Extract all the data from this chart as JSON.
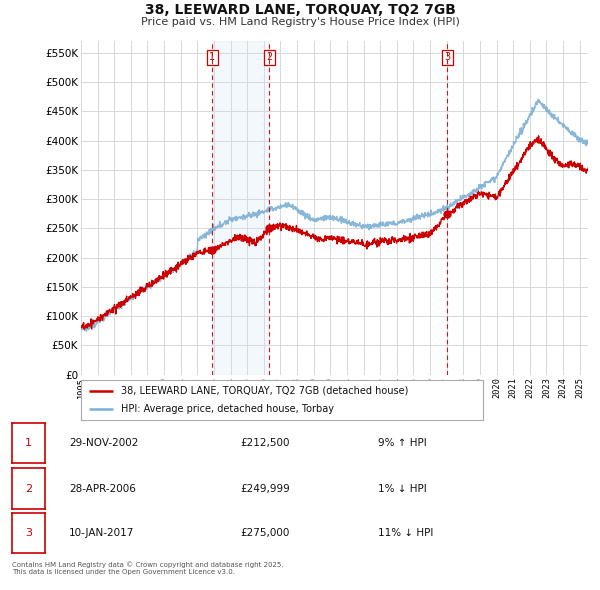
{
  "title": "38, LEEWARD LANE, TORQUAY, TQ2 7GB",
  "subtitle": "Price paid vs. HM Land Registry's House Price Index (HPI)",
  "background_color": "#ffffff",
  "plot_bg_color": "#ffffff",
  "grid_color": "#d8d8d8",
  "ylim": [
    0,
    570000
  ],
  "yticks": [
    0,
    50000,
    100000,
    150000,
    200000,
    250000,
    300000,
    350000,
    400000,
    450000,
    500000,
    550000
  ],
  "sale_dates": [
    2002.91,
    2006.32,
    2017.03
  ],
  "sale_prices": [
    212500,
    249999,
    275000
  ],
  "sale_labels": [
    "1",
    "2",
    "3"
  ],
  "legend_property": "38, LEEWARD LANE, TORQUAY, TQ2 7GB (detached house)",
  "legend_hpi": "HPI: Average price, detached house, Torbay",
  "table_rows": [
    {
      "num": "1",
      "date": "29-NOV-2002",
      "price": "£212,500",
      "pct": "9% ↑ HPI"
    },
    {
      "num": "2",
      "date": "28-APR-2006",
      "price": "£249,999",
      "pct": "1% ↓ HPI"
    },
    {
      "num": "3",
      "date": "10-JAN-2017",
      "price": "£275,000",
      "pct": "11% ↓ HPI"
    }
  ],
  "footnote": "Contains HM Land Registry data © Crown copyright and database right 2025.\nThis data is licensed under the Open Government Licence v3.0.",
  "red_color": "#cc0000",
  "blue_color": "#7bafd4",
  "shade_color": "#d0e4f5",
  "vline_color": "#cc0000"
}
